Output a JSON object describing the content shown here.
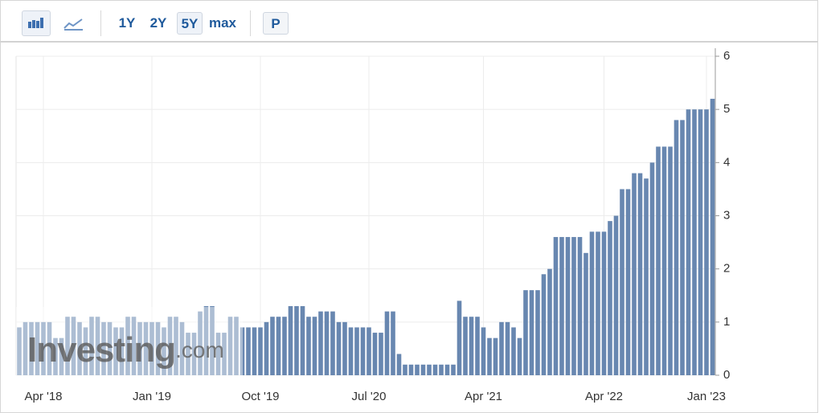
{
  "toolbar": {
    "ranges": [
      "1Y",
      "2Y",
      "5Y",
      "max"
    ],
    "selected_range": 2,
    "extra": "P"
  },
  "chart_data": {
    "type": "bar",
    "watermark": [
      "Investing",
      ".com"
    ],
    "categories": [
      null,
      null,
      null,
      null,
      "Apr '18",
      null,
      null,
      null,
      null,
      null,
      null,
      null,
      null,
      null,
      null,
      null,
      null,
      null,
      null,
      null,
      null,
      null,
      "Jan '19",
      null,
      null,
      null,
      null,
      null,
      null,
      null,
      null,
      null,
      null,
      null,
      null,
      null,
      null,
      null,
      null,
      null,
      "Oct '19",
      null,
      null,
      null,
      null,
      null,
      null,
      null,
      null,
      null,
      null,
      null,
      null,
      null,
      null,
      null,
      null,
      null,
      "Jul '20",
      null,
      null,
      null,
      null,
      null,
      null,
      null,
      null,
      null,
      null,
      null,
      null,
      null,
      null,
      null,
      null,
      null,
      null,
      "Apr '21",
      null,
      null,
      null,
      null,
      null,
      null,
      null,
      null,
      null,
      null,
      null,
      null,
      null,
      null,
      null,
      null,
      null,
      null,
      null,
      "Apr '22",
      null,
      null,
      null,
      null,
      null,
      null,
      null,
      null,
      null,
      null,
      null,
      null,
      null,
      null,
      null,
      null,
      "Jan '23",
      null
    ],
    "values": [
      0.9,
      1.0,
      1.0,
      1.0,
      1.0,
      1.0,
      0.7,
      0.7,
      1.1,
      1.1,
      1.0,
      0.9,
      1.1,
      1.1,
      1.0,
      1.0,
      0.9,
      0.9,
      1.1,
      1.1,
      1.0,
      1.0,
      1.0,
      1.0,
      0.9,
      1.1,
      1.1,
      1.0,
      0.8,
      0.8,
      1.2,
      1.3,
      1.3,
      0.8,
      0.8,
      1.1,
      1.1,
      0.9,
      0.9,
      0.9,
      0.9,
      1.0,
      1.1,
      1.1,
      1.1,
      1.3,
      1.3,
      1.3,
      1.1,
      1.1,
      1.2,
      1.2,
      1.2,
      1.0,
      1.0,
      0.9,
      0.9,
      0.9,
      0.9,
      0.8,
      0.8,
      1.2,
      1.2,
      0.4,
      0.2,
      0.2,
      0.2,
      0.2,
      0.2,
      0.2,
      0.2,
      0.2,
      0.2,
      1.4,
      1.1,
      1.1,
      1.1,
      0.9,
      0.7,
      0.7,
      1.0,
      1.0,
      0.9,
      0.7,
      1.6,
      1.6,
      1.6,
      1.9,
      2.0,
      2.6,
      2.6,
      2.6,
      2.6,
      2.6,
      2.3,
      2.7,
      2.7,
      2.7,
      2.9,
      3.0,
      3.5,
      3.5,
      3.8,
      3.8,
      3.7,
      4.0,
      4.3,
      4.3,
      4.3,
      4.8,
      4.8,
      5.0,
      5.0,
      5.0,
      5.0,
      5.2
    ],
    "color": "#6887b0",
    "ylim": [
      0,
      6
    ],
    "yticks": [
      0,
      1,
      2,
      3,
      4,
      5,
      6
    ],
    "grid": true
  }
}
